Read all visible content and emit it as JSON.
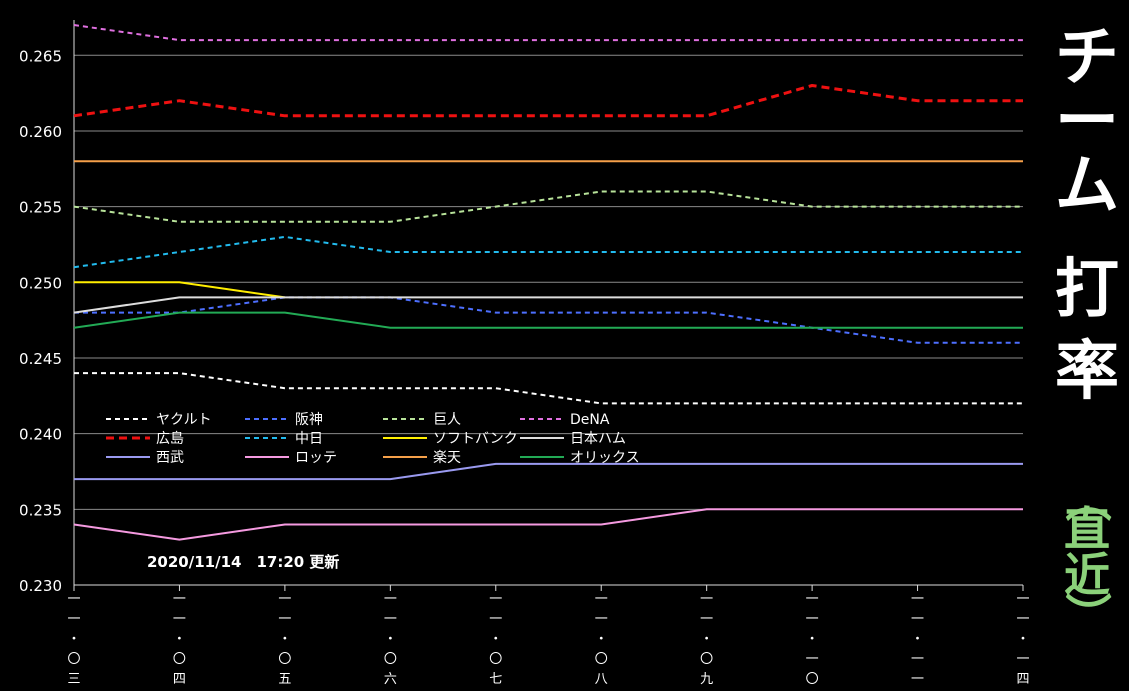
{
  "side_title": {
    "line1": "チーム",
    "line2": "打",
    "line3": "率",
    "sub_open": "（",
    "sub1": "直",
    "sub2": "近",
    "sub_close": "）"
  },
  "updated": "2020/11/14　17:20 更新",
  "chart_data": {
    "type": "line",
    "ylim": [
      0.23,
      0.267
    ],
    "yticks": [
      "0.230",
      "0.235",
      "0.240",
      "0.245",
      "0.250",
      "0.255",
      "0.260",
      "0.265"
    ],
    "x": [
      "一一・〇三",
      "一一・〇四",
      "一一・〇五",
      "一一・〇六",
      "一一・〇七",
      "一一・〇八",
      "一一・〇九",
      "一一・一〇",
      "一一・一一",
      "一一・一四"
    ],
    "grid": true,
    "legend_position": "bottom-left",
    "series": [
      {
        "name": "ヤクルト",
        "color": "#ffffff",
        "style": "dashed",
        "values": [
          0.244,
          0.244,
          0.243,
          0.243,
          0.243,
          0.242,
          0.242,
          0.242,
          0.242,
          0.242
        ]
      },
      {
        "name": "阪神",
        "color": "#4d6fff",
        "style": "dashed",
        "values": [
          0.248,
          0.248,
          0.249,
          0.249,
          0.248,
          0.248,
          0.248,
          0.247,
          0.246,
          0.246
        ]
      },
      {
        "name": "巨人",
        "color": "#b8e39a",
        "style": "dashed",
        "values": [
          0.255,
          0.254,
          0.254,
          0.254,
          0.255,
          0.256,
          0.256,
          0.255,
          0.255,
          0.255
        ]
      },
      {
        "name": "DeNA",
        "color": "#e070e0",
        "style": "dashed",
        "values": [
          0.267,
          0.266,
          0.266,
          0.266,
          0.266,
          0.266,
          0.266,
          0.266,
          0.266,
          0.266
        ]
      },
      {
        "name": "広島",
        "color": "#ee1111",
        "style": "bold-dashed",
        "values": [
          0.261,
          0.262,
          0.261,
          0.261,
          0.261,
          0.261,
          0.261,
          0.263,
          0.262,
          0.262
        ]
      },
      {
        "name": "中日",
        "color": "#22bbee",
        "style": "dashed",
        "values": [
          0.251,
          0.252,
          0.253,
          0.252,
          0.252,
          0.252,
          0.252,
          0.252,
          0.252,
          0.252
        ]
      },
      {
        "name": "ソフトバンク",
        "color": "#ffee00",
        "style": "solid",
        "values": [
          0.25,
          0.25,
          0.249,
          null,
          null,
          null,
          null,
          null,
          null,
          null
        ]
      },
      {
        "name": "日本ハム",
        "color": "#dddddd",
        "style": "solid",
        "values": [
          0.248,
          0.249,
          0.249,
          0.249,
          0.249,
          0.249,
          0.249,
          0.249,
          0.249,
          0.249
        ]
      },
      {
        "name": "西武",
        "color": "#9a9af0",
        "style": "solid",
        "values": [
          0.237,
          0.237,
          0.237,
          0.237,
          0.238,
          0.238,
          0.238,
          0.238,
          0.238,
          0.238
        ]
      },
      {
        "name": "ロッテ",
        "color": "#f59ae0",
        "style": "solid",
        "values": [
          0.234,
          0.233,
          0.234,
          0.234,
          0.234,
          0.234,
          0.235,
          0.235,
          0.235,
          0.235
        ]
      },
      {
        "name": "楽天",
        "color": "#f5a04a",
        "style": "solid",
        "values": [
          0.258,
          0.258,
          0.258,
          0.258,
          0.258,
          0.258,
          0.258,
          0.258,
          0.258,
          0.258
        ]
      },
      {
        "name": "オリックス",
        "color": "#22aa55",
        "style": "solid",
        "values": [
          0.247,
          0.248,
          0.248,
          0.247,
          0.247,
          0.247,
          0.247,
          0.247,
          0.247,
          0.247
        ]
      }
    ]
  }
}
